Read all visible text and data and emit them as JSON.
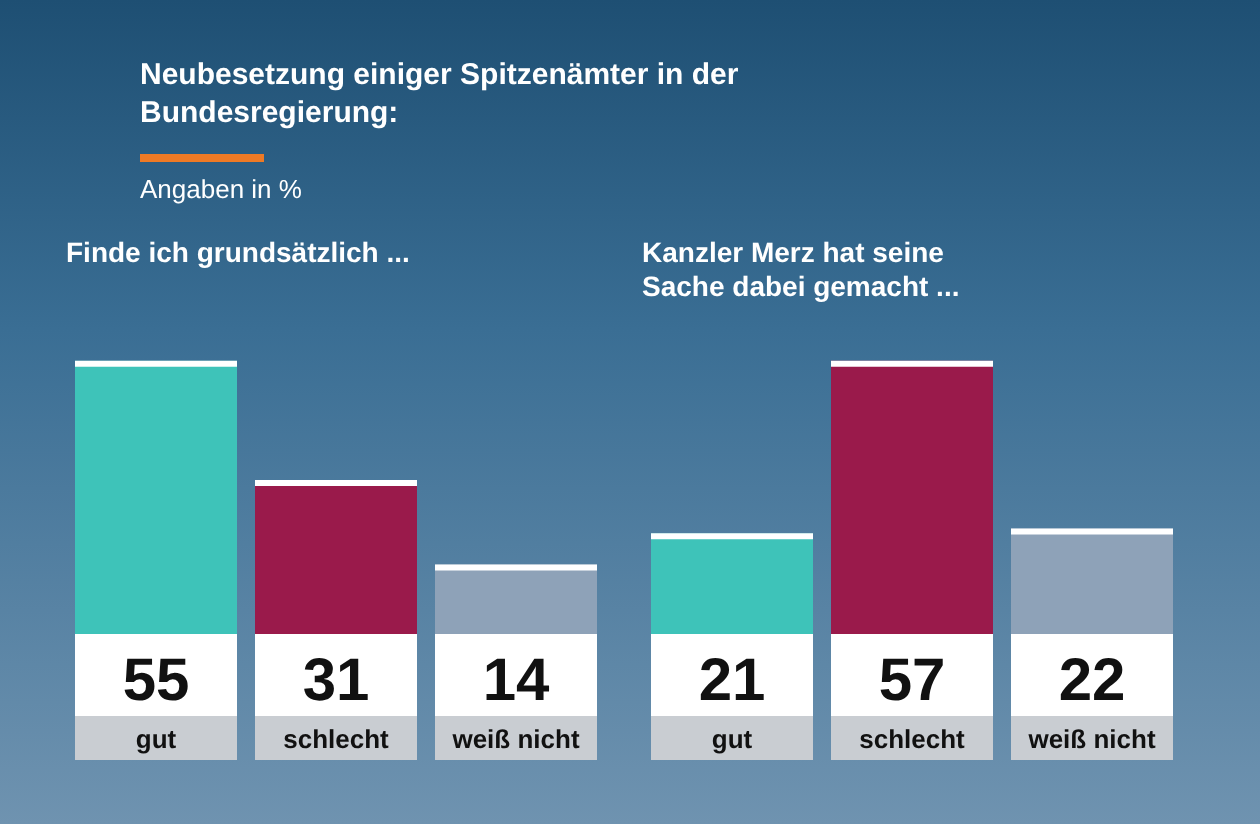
{
  "chart_data": [
    {
      "type": "bar",
      "title": "Neubesetzung einiger Spitzenämter in der Bundesregierung:",
      "subtitle": "Angaben in %",
      "annotations": [
        "Finde ich grundsätzlich ..."
      ],
      "categories": [
        "gut",
        "schlecht",
        "weiß nicht"
      ],
      "values": [
        55,
        31,
        14
      ],
      "colors": [
        "#3ec3b9",
        "#9a1a4b",
        "#8ea2b8"
      ],
      "data_labels": true,
      "legend": false,
      "grid": false
    },
    {
      "type": "bar",
      "title": "Kanzler Merz hat seine Sache dabei gemacht ...",
      "categories": [
        "gut",
        "schlecht",
        "weiß nicht"
      ],
      "values": [
        21,
        57,
        22
      ],
      "colors": [
        "#3ec3b9",
        "#9a1a4b",
        "#8ea2b8"
      ],
      "data_labels": true,
      "legend": false,
      "grid": false
    }
  ]
}
